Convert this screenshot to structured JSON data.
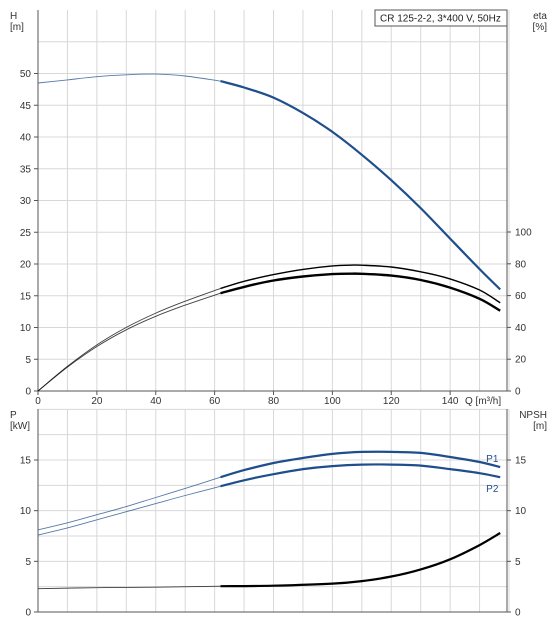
{
  "chart_data": [
    {
      "type": "line",
      "title": "CR 125-2-2, 3*400 V, 50Hz",
      "x_axis": {
        "label": "Q [m³/h]",
        "range": [
          0,
          160
        ],
        "ticks": [
          0,
          20,
          40,
          60,
          80,
          100,
          120,
          140
        ]
      },
      "y_axis_left": {
        "label_top": "H",
        "label_unit": "[m]",
        "range": [
          0,
          50
        ],
        "ticks": [
          0,
          5,
          10,
          15,
          20,
          25,
          30,
          35,
          40,
          45,
          50
        ]
      },
      "y_axis_right": {
        "label_top": "eta",
        "label_unit": "[%]",
        "range": [
          0,
          100
        ],
        "ticks": [
          0,
          20,
          40,
          60,
          80,
          100
        ]
      },
      "series": [
        {
          "axis": "left",
          "color": "#1f4e8c",
          "points": [
            [
              0,
              48.5
            ],
            [
              10,
              49.0
            ],
            [
              20,
              49.5
            ],
            [
              30,
              49.8
            ],
            [
              40,
              49.9
            ],
            [
              50,
              49.6
            ],
            [
              62,
              48.8
            ],
            [
              70,
              47.8
            ],
            [
              80,
              46.2
            ],
            [
              90,
              43.8
            ],
            [
              100,
              40.8
            ],
            [
              110,
              37.2
            ],
            [
              120,
              33.2
            ],
            [
              130,
              28.8
            ],
            [
              140,
              24.0
            ],
            [
              150,
              19.2
            ],
            [
              157,
              16.0
            ]
          ]
        },
        {
          "axis": "right",
          "color": "#000000",
          "points": [
            [
              0,
              0
            ],
            [
              10,
              15
            ],
            [
              20,
              28
            ],
            [
              30,
              38.5
            ],
            [
              40,
              47
            ],
            [
              50,
              54
            ],
            [
              62,
              61.5
            ],
            [
              70,
              65.5
            ],
            [
              80,
              69.5
            ],
            [
              90,
              72
            ],
            [
              100,
              73.5
            ],
            [
              106,
              73.8
            ],
            [
              110,
              73.7
            ],
            [
              120,
              72.6
            ],
            [
              130,
              69.8
            ],
            [
              140,
              65
            ],
            [
              150,
              58
            ],
            [
              157,
              50.5
            ]
          ]
        },
        {
          "axis": "right",
          "color": "#000000",
          "points": [
            [
              0,
              0
            ],
            [
              10,
              15.5
            ],
            [
              20,
              29
            ],
            [
              30,
              40
            ],
            [
              40,
              49
            ],
            [
              50,
              56.5
            ],
            [
              62,
              64.5
            ],
            [
              70,
              69
            ],
            [
              80,
              73.2
            ],
            [
              90,
              76.5
            ],
            [
              100,
              78.7
            ],
            [
              107,
              79.2
            ],
            [
              110,
              79.1
            ],
            [
              120,
              78
            ],
            [
              130,
              75
            ],
            [
              140,
              70.5
            ],
            [
              150,
              63.5
            ],
            [
              157,
              55.5
            ]
          ]
        }
      ]
    },
    {
      "type": "line",
      "x_axis": {
        "range": [
          0,
          160
        ]
      },
      "y_axis_left": {
        "label_top": "P",
        "label_unit": "[kW]",
        "range": [
          0,
          20
        ],
        "ticks": [
          0,
          5,
          10,
          15
        ]
      },
      "y_axis_right": {
        "label_top": "NPSH",
        "label_unit": "[m]",
        "range": [
          0,
          20
        ],
        "ticks": [
          0,
          5,
          10,
          15
        ]
      },
      "series": [
        {
          "name": "P1",
          "axis": "left",
          "color": "#1f4e8c",
          "points": [
            [
              0,
              8.1
            ],
            [
              10,
              8.8
            ],
            [
              20,
              9.6
            ],
            [
              30,
              10.4
            ],
            [
              40,
              11.3
            ],
            [
              50,
              12.2
            ],
            [
              62,
              13.3
            ],
            [
              70,
              14.0
            ],
            [
              80,
              14.7
            ],
            [
              90,
              15.2
            ],
            [
              100,
              15.6
            ],
            [
              110,
              15.8
            ],
            [
              120,
              15.8
            ],
            [
              130,
              15.7
            ],
            [
              140,
              15.3
            ],
            [
              150,
              14.8
            ],
            [
              157,
              14.3
            ]
          ]
        },
        {
          "name": "P2",
          "axis": "left",
          "color": "#1f4e8c",
          "points": [
            [
              0,
              7.6
            ],
            [
              10,
              8.3
            ],
            [
              20,
              9.1
            ],
            [
              30,
              9.9
            ],
            [
              40,
              10.7
            ],
            [
              50,
              11.5
            ],
            [
              62,
              12.4
            ],
            [
              70,
              13.0
            ],
            [
              80,
              13.6
            ],
            [
              90,
              14.1
            ],
            [
              100,
              14.4
            ],
            [
              110,
              14.55
            ],
            [
              120,
              14.55
            ],
            [
              130,
              14.45
            ],
            [
              140,
              14.1
            ],
            [
              150,
              13.7
            ],
            [
              157,
              13.3
            ]
          ]
        },
        {
          "axis": "right",
          "color": "#000000",
          "points": [
            [
              0,
              2.3
            ],
            [
              20,
              2.4
            ],
            [
              40,
              2.45
            ],
            [
              62,
              2.55
            ],
            [
              80,
              2.6
            ],
            [
              100,
              2.8
            ],
            [
              110,
              3.05
            ],
            [
              120,
              3.5
            ],
            [
              130,
              4.2
            ],
            [
              140,
              5.2
            ],
            [
              150,
              6.6
            ],
            [
              157,
              7.8
            ]
          ]
        }
      ]
    }
  ]
}
